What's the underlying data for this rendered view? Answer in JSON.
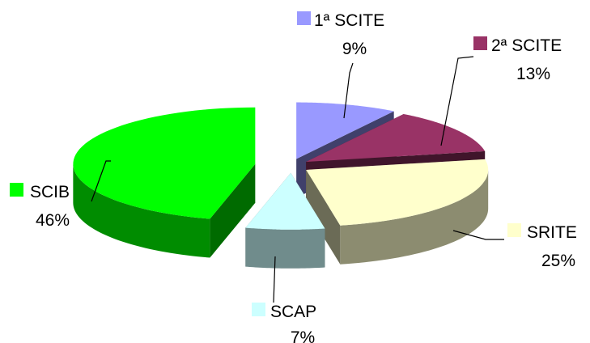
{
  "chart_data": {
    "type": "pie",
    "style": "3d-exploded",
    "slices": [
      {
        "label": "1ª SCITE",
        "value": 9,
        "value_label": "9%",
        "color": "#9999ff"
      },
      {
        "label": "2ª SCITE",
        "value": 13,
        "value_label": "13%",
        "color": "#993366"
      },
      {
        "label": "SRITE",
        "value": 25,
        "value_label": "25%",
        "color": "#ffffcc"
      },
      {
        "label": "SCAP",
        "value": 7,
        "value_label": "7%",
        "color": "#ccffff"
      },
      {
        "label": "SCIB",
        "value": 46,
        "value_label": "46%",
        "color": "#00ff00"
      }
    ],
    "legend": "none",
    "data_labels": "category-and-percent",
    "leader_lines": true
  }
}
